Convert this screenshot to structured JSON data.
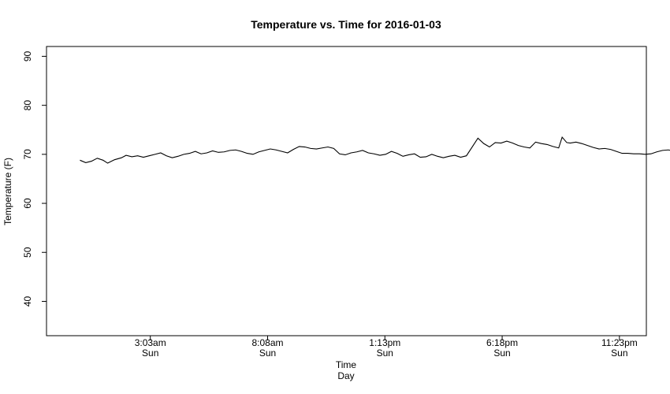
{
  "chart_data": {
    "type": "line",
    "title": "Temperature vs. Time for 2016-01-03",
    "xlabel": "Time",
    "xlabel2": "Day",
    "ylabel": "Temperature (F)",
    "ylim": [
      33,
      92
    ],
    "xlim": [
      -1.45,
      24.55
    ],
    "grid": false,
    "legend": "none",
    "y_ticks": [
      40,
      50,
      60,
      70,
      80,
      90
    ],
    "x_ticks": [
      {
        "hour": 3.05,
        "label": "3:03am",
        "day": "Sun"
      },
      {
        "hour": 8.1333,
        "label": "8:08am",
        "day": "Sun"
      },
      {
        "hour": 13.2167,
        "label": "1:13pm",
        "day": "Sun"
      },
      {
        "hour": 18.3,
        "label": "6:18pm",
        "day": "Sun"
      },
      {
        "hour": 23.3833,
        "label": "11:23pm",
        "day": "Sun"
      }
    ],
    "series": [
      {
        "line_color": "#000000",
        "points": [
          [
            0.0,
            68.8
          ],
          [
            0.25,
            68.3
          ],
          [
            0.5,
            68.6
          ],
          [
            0.75,
            69.2
          ],
          [
            1.0,
            68.8
          ],
          [
            1.2,
            68.2
          ],
          [
            1.5,
            68.9
          ],
          [
            1.8,
            69.3
          ],
          [
            2.0,
            69.8
          ],
          [
            2.25,
            69.5
          ],
          [
            2.5,
            69.7
          ],
          [
            2.75,
            69.4
          ],
          [
            3.0,
            69.7
          ],
          [
            3.25,
            70.0
          ],
          [
            3.5,
            70.3
          ],
          [
            3.75,
            69.7
          ],
          [
            4.0,
            69.3
          ],
          [
            4.25,
            69.6
          ],
          [
            4.5,
            70.0
          ],
          [
            4.75,
            70.2
          ],
          [
            5.0,
            70.6
          ],
          [
            5.25,
            70.1
          ],
          [
            5.5,
            70.3
          ],
          [
            5.75,
            70.7
          ],
          [
            6.0,
            70.4
          ],
          [
            6.25,
            70.5
          ],
          [
            6.5,
            70.8
          ],
          [
            6.75,
            70.9
          ],
          [
            7.0,
            70.6
          ],
          [
            7.25,
            70.2
          ],
          [
            7.5,
            70.0
          ],
          [
            7.75,
            70.5
          ],
          [
            8.0,
            70.8
          ],
          [
            8.25,
            71.1
          ],
          [
            8.5,
            70.9
          ],
          [
            8.75,
            70.6
          ],
          [
            9.0,
            70.3
          ],
          [
            9.25,
            71.0
          ],
          [
            9.5,
            71.6
          ],
          [
            9.75,
            71.5
          ],
          [
            10.0,
            71.2
          ],
          [
            10.25,
            71.1
          ],
          [
            10.5,
            71.3
          ],
          [
            10.75,
            71.5
          ],
          [
            11.0,
            71.2
          ],
          [
            11.25,
            70.1
          ],
          [
            11.5,
            69.9
          ],
          [
            11.75,
            70.3
          ],
          [
            12.0,
            70.5
          ],
          [
            12.25,
            70.8
          ],
          [
            12.5,
            70.3
          ],
          [
            12.75,
            70.1
          ],
          [
            13.0,
            69.8
          ],
          [
            13.25,
            70.0
          ],
          [
            13.5,
            70.6
          ],
          [
            13.75,
            70.2
          ],
          [
            14.0,
            69.6
          ],
          [
            14.25,
            69.9
          ],
          [
            14.5,
            70.1
          ],
          [
            14.75,
            69.4
          ],
          [
            15.0,
            69.5
          ],
          [
            15.25,
            70.0
          ],
          [
            15.5,
            69.6
          ],
          [
            15.75,
            69.3
          ],
          [
            16.0,
            69.6
          ],
          [
            16.25,
            69.8
          ],
          [
            16.5,
            69.4
          ],
          [
            16.75,
            69.7
          ],
          [
            17.0,
            71.5
          ],
          [
            17.25,
            73.3
          ],
          [
            17.5,
            72.2
          ],
          [
            17.75,
            71.5
          ],
          [
            18.0,
            72.4
          ],
          [
            18.25,
            72.3
          ],
          [
            18.5,
            72.7
          ],
          [
            18.75,
            72.3
          ],
          [
            19.0,
            71.8
          ],
          [
            19.25,
            71.5
          ],
          [
            19.5,
            71.3
          ],
          [
            19.75,
            72.5
          ],
          [
            20.0,
            72.2
          ],
          [
            20.25,
            72.0
          ],
          [
            20.5,
            71.6
          ],
          [
            20.75,
            71.3
          ],
          [
            20.9,
            73.5
          ],
          [
            21.1,
            72.4
          ],
          [
            21.25,
            72.3
          ],
          [
            21.5,
            72.5
          ],
          [
            21.75,
            72.2
          ],
          [
            22.0,
            71.8
          ],
          [
            22.25,
            71.4
          ],
          [
            22.5,
            71.1
          ],
          [
            22.75,
            71.2
          ],
          [
            23.0,
            71.0
          ],
          [
            23.25,
            70.6
          ],
          [
            23.5,
            70.2
          ],
          [
            23.75,
            70.2
          ],
          [
            24.0,
            70.1
          ],
          [
            24.25,
            70.1
          ],
          [
            24.5,
            70.0
          ],
          [
            24.75,
            70.1
          ],
          [
            25.0,
            70.5
          ],
          [
            25.25,
            70.8
          ],
          [
            25.5,
            70.9
          ],
          [
            25.75,
            70.7
          ]
        ]
      }
    ]
  }
}
